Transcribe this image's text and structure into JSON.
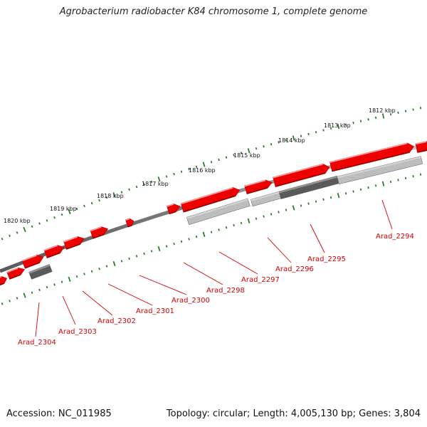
{
  "title": "Agrobacterium radiobacter K84 chromosome 1, complete genome",
  "footer": {
    "accession": "Accession: NC_011985",
    "summary": "Topology: circular; Length: 4,005,130 bp; Genes: 3,804"
  },
  "scale_labels": [
    "1820 kbp",
    "1819 kbp",
    "1818 kbp",
    "1817 kbp",
    "1816 kbp",
    "1815 kbp",
    "1814 kbp",
    "1813 kbp",
    "1812 kbp"
  ],
  "gene_labels": [
    "Arad_2304",
    "Arad_2303",
    "Arad_2302",
    "Arad_2301",
    "Arad_2300",
    "Arad_2298",
    "Arad_2297",
    "Arad_2296",
    "Arad_2295",
    "Arad_2294"
  ],
  "colors": {
    "gene": "#ee0000",
    "gene_label": "#d60000",
    "tick": "#1e7a1e",
    "backbone": "#808080",
    "feature_dark": "#5a5a5a",
    "feature_light": "#bdbdbd"
  }
}
